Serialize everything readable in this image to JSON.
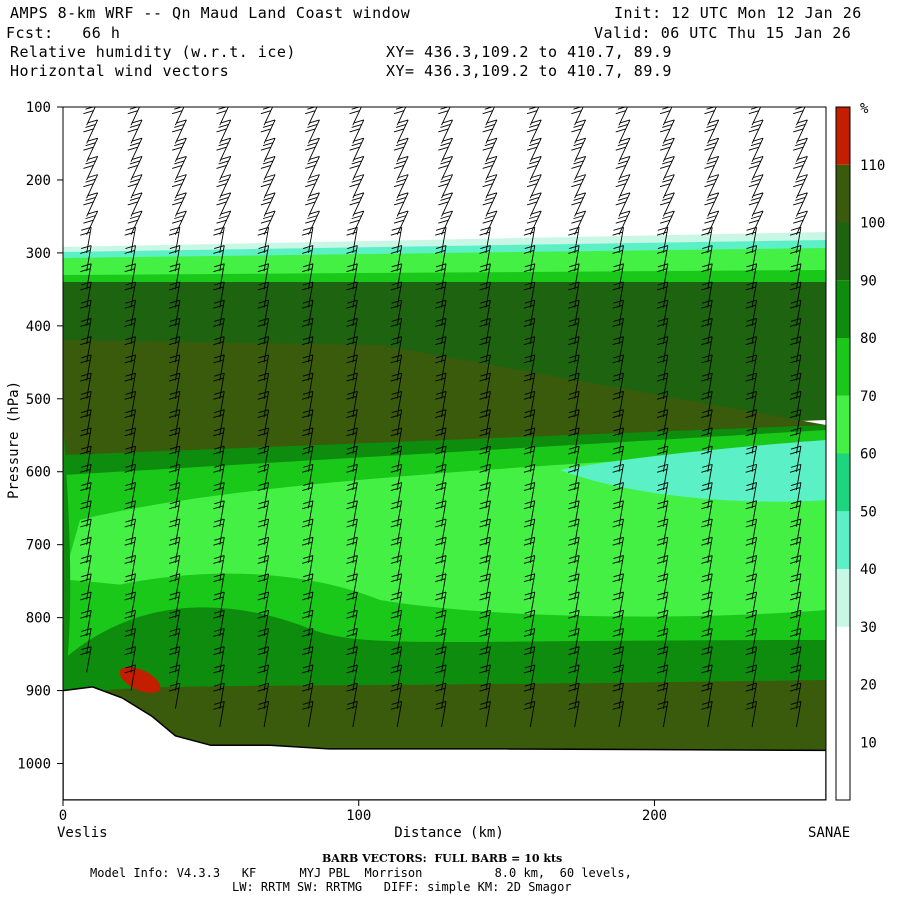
{
  "header": {
    "title": "AMPS 8-km WRF -- Qn Maud Land Coast window",
    "init": "Init: 12 UTC Mon 12 Jan 26",
    "fcst": "Fcst:   66 h",
    "valid": "Valid: 06 UTC Thu 15 Jan 26",
    "field1": "Relative humidity (w.r.t. ice)",
    "field1_xy": "XY= 436.3,109.2 to 410.7, 89.9",
    "field2": "Horizontal wind vectors",
    "field2_xy": "XY= 436.3,109.2 to 410.7, 89.9"
  },
  "chart_data": {
    "type": "heatmap",
    "title": "Relative humidity (w.r.t. ice)",
    "xlabel": "Distance (km)",
    "ylabel": "Pressure (hPa)",
    "xlim": [
      0,
      258
    ],
    "ylim": [
      1050,
      100
    ],
    "x_ticks": [
      0,
      100,
      200
    ],
    "y_ticks": [
      100,
      200,
      300,
      400,
      500,
      600,
      700,
      800,
      900,
      1000
    ],
    "left_endpoint": "Veslis",
    "right_endpoint": "SANAE",
    "colorbar": {
      "unit": "%",
      "levels": [
        10,
        20,
        30,
        40,
        50,
        60,
        70,
        80,
        90,
        100,
        110
      ],
      "colors": [
        "#ffffff",
        "#ffffff",
        "#ffffff",
        "#c8f7e6",
        "#5cf0c6",
        "#1cd67e",
        "#44f044",
        "#19c819",
        "#0e8c0e",
        "#1e6410",
        "#3a5a0c",
        "#c41e00"
      ]
    },
    "rh_bands": [
      {
        "name": "upper-dry",
        "rh": 0,
        "color": "#ffffff"
      },
      {
        "name": "thin-aqua-layer",
        "rh": 45,
        "color": "#5cf0c6"
      },
      {
        "name": "moist-layer-300",
        "rh": 75,
        "color": "#44f044"
      },
      {
        "name": "saturated-mid",
        "rh": 105,
        "color": "#3a5a0c"
      },
      {
        "name": "moist-layer-600",
        "rh": 80,
        "color": "#19c819"
      },
      {
        "name": "dry-core",
        "rh": 75,
        "color": "#44f044"
      },
      {
        "name": "boundary-layer",
        "rh": 95,
        "color": "#0e8c0e"
      },
      {
        "name": "near-surface",
        "rh": 105,
        "color": "#3a5a0c"
      },
      {
        "name": "supersaturated-spot",
        "rh": 115,
        "color": "#c41e00"
      }
    ],
    "terrain": [
      {
        "x": 0,
        "p": 900
      },
      {
        "x": 10,
        "p": 895
      },
      {
        "x": 20,
        "p": 910
      },
      {
        "x": 30,
        "p": 935
      },
      {
        "x": 38,
        "p": 962
      },
      {
        "x": 50,
        "p": 975
      },
      {
        "x": 70,
        "p": 975
      },
      {
        "x": 90,
        "p": 980
      },
      {
        "x": 150,
        "p": 980
      },
      {
        "x": 258,
        "p": 982
      }
    ],
    "barb_spacing_km": 15
  },
  "footer": {
    "barb_note": "BARB VECTORS:  FULL BARB = 10 kts",
    "model_info": "Model Info: V4.3.3   KF      MYJ PBL  Morrison          8.0 km,  60 levels,",
    "physics": "LW: RRTM SW: RRTMG   DIFF: simple KM: 2D Smagor"
  }
}
